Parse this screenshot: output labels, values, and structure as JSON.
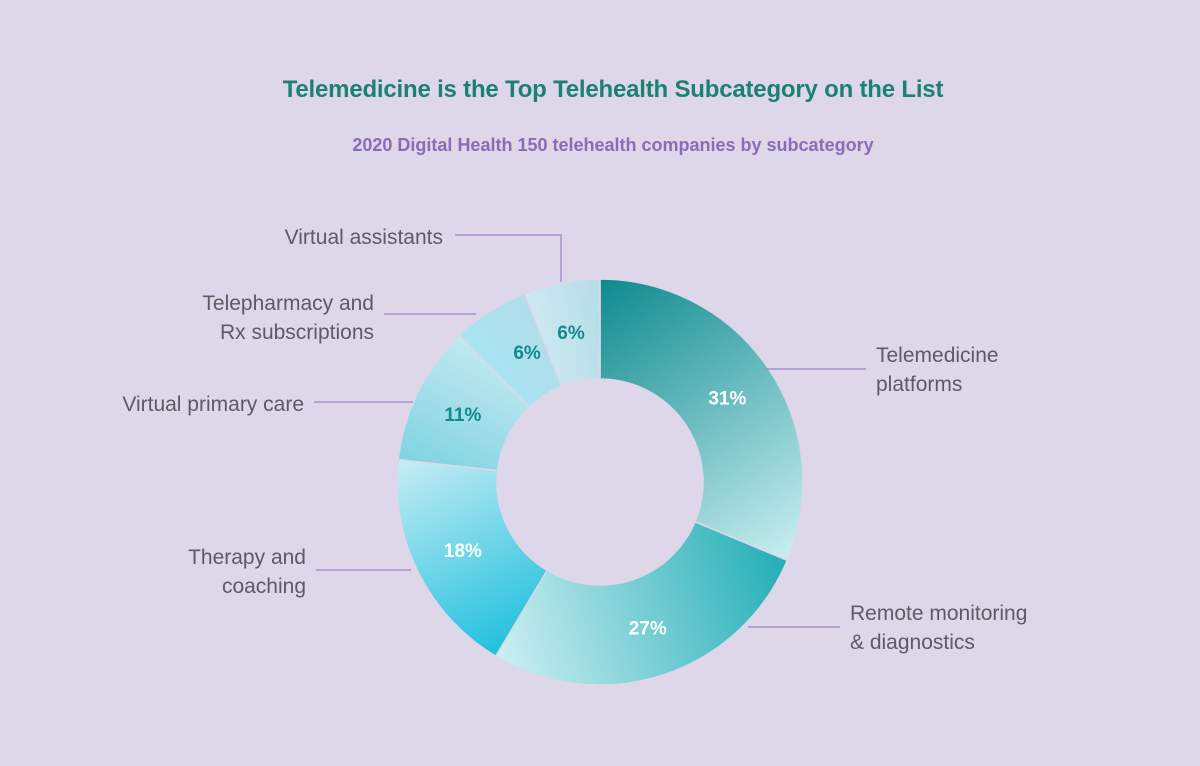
{
  "colors": {
    "background": "#ded7e9",
    "title": "#1b8173",
    "subtitle": "#8a6bb7",
    "leader": "#9b84c4",
    "label_text": "#5d5a63"
  },
  "chart_data": {
    "type": "pie",
    "variant": "donut",
    "title": "Telemedicine is the Top Telehealth Subcategory on the List",
    "subtitle": "2020 Digital Health 150 telehealth companies by subcategory",
    "unit": "%",
    "start": "12 o'clock, clockwise",
    "slices": [
      {
        "label": [
          "Telemedicine",
          "platforms"
        ],
        "value": 31,
        "value_label": "31%",
        "color_from": "#0d8a8e",
        "color_to": "#c9eef0",
        "value_color": "#ffffff"
      },
      {
        "label": [
          "Remote monitoring",
          "& diagnostics"
        ],
        "value": 27,
        "value_label": "27%",
        "color_from": "#22aeb6",
        "color_to": "#cdeff2",
        "value_color": "#ffffff"
      },
      {
        "label": [
          "Therapy and",
          "coaching"
        ],
        "value": 18,
        "value_label": "18%",
        "color_from": "#1fc0de",
        "color_to": "#c6edf4",
        "value_color": "#ffffff"
      },
      {
        "label": [
          "Virtual primary care"
        ],
        "value": 11,
        "value_label": "11%",
        "color_from": "#7fd3e2",
        "color_to": "#c2e9f0",
        "value_color": "#138a8c"
      },
      {
        "label": [
          "Telepharmacy and",
          "Rx subscriptions"
        ],
        "value": 6,
        "value_label": "6%",
        "color_from": "#a6e6f2",
        "color_to": "#b2dcea",
        "value_color": "#138a8c"
      },
      {
        "label": [
          "Virtual assistants"
        ],
        "value": 6,
        "value_label": "6%",
        "color_from": "#cde9f1",
        "color_to": "#b5dde8",
        "value_color": "#138a8c"
      }
    ]
  }
}
